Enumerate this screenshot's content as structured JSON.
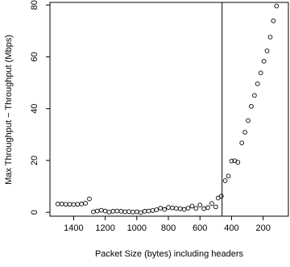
{
  "chart_data": {
    "type": "scatter",
    "title": "",
    "xlabel": "Packet Size (bytes) including headers",
    "ylabel": "Max Throughput − Throughput (Mbps)",
    "x_reversed": true,
    "xlim": [
      1550,
      40
    ],
    "ylim": [
      -1.5,
      81
    ],
    "xticks": [
      1400,
      1200,
      1000,
      800,
      600,
      400,
      200
    ],
    "xtick_labels": [
      "1400",
      "1200",
      "1000",
      "800",
      "600",
      "400",
      "200"
    ],
    "yticks": [
      0,
      20,
      40,
      60,
      80
    ],
    "ytick_labels": [
      "0",
      "20",
      "40",
      "60",
      "80"
    ],
    "vertical_line_x": 460,
    "marker": "open-circle",
    "grid": false,
    "series": [
      {
        "points": [
          {
            "x": 1500,
            "y": 3.2
          },
          {
            "x": 1475,
            "y": 3.2
          },
          {
            "x": 1450,
            "y": 3.1
          },
          {
            "x": 1425,
            "y": 3.1
          },
          {
            "x": 1400,
            "y": 3.0
          },
          {
            "x": 1375,
            "y": 3.1
          },
          {
            "x": 1350,
            "y": 3.2
          },
          {
            "x": 1325,
            "y": 3.5
          },
          {
            "x": 1300,
            "y": 5.2
          },
          {
            "x": 1275,
            "y": 0.2
          },
          {
            "x": 1250,
            "y": 0.5
          },
          {
            "x": 1225,
            "y": 0.8
          },
          {
            "x": 1200,
            "y": 0.5
          },
          {
            "x": 1175,
            "y": 0.1
          },
          {
            "x": 1150,
            "y": 0.4
          },
          {
            "x": 1125,
            "y": 0.5
          },
          {
            "x": 1100,
            "y": 0.4
          },
          {
            "x": 1075,
            "y": 0.2
          },
          {
            "x": 1050,
            "y": 0.3
          },
          {
            "x": 1025,
            "y": 0.1
          },
          {
            "x": 1000,
            "y": 0.2
          },
          {
            "x": 975,
            "y": -0.1
          },
          {
            "x": 950,
            "y": 0.4
          },
          {
            "x": 925,
            "y": 0.5
          },
          {
            "x": 900,
            "y": 0.7
          },
          {
            "x": 875,
            "y": 1.0
          },
          {
            "x": 850,
            "y": 1.6
          },
          {
            "x": 825,
            "y": 1.1
          },
          {
            "x": 800,
            "y": 1.9
          },
          {
            "x": 775,
            "y": 1.7
          },
          {
            "x": 750,
            "y": 1.5
          },
          {
            "x": 725,
            "y": 1.4
          },
          {
            "x": 700,
            "y": 1.1
          },
          {
            "x": 675,
            "y": 1.6
          },
          {
            "x": 650,
            "y": 2.4
          },
          {
            "x": 625,
            "y": 1.5
          },
          {
            "x": 600,
            "y": 2.8
          },
          {
            "x": 575,
            "y": 1.4
          },
          {
            "x": 550,
            "y": 1.8
          },
          {
            "x": 525,
            "y": 3.4
          },
          {
            "x": 500,
            "y": 2.1
          },
          {
            "x": 485,
            "y": 5.5
          },
          {
            "x": 465,
            "y": 6.2
          },
          {
            "x": 440,
            "y": 12.2
          },
          {
            "x": 420,
            "y": 14.0
          },
          {
            "x": 400,
            "y": 19.8
          },
          {
            "x": 380,
            "y": 19.9
          },
          {
            "x": 360,
            "y": 19.3
          },
          {
            "x": 335,
            "y": 26.8
          },
          {
            "x": 315,
            "y": 30.9
          },
          {
            "x": 295,
            "y": 35.4
          },
          {
            "x": 275,
            "y": 40.9
          },
          {
            "x": 255,
            "y": 45.1
          },
          {
            "x": 235,
            "y": 49.6
          },
          {
            "x": 215,
            "y": 53.8
          },
          {
            "x": 195,
            "y": 58.3
          },
          {
            "x": 175,
            "y": 62.3
          },
          {
            "x": 155,
            "y": 67.6
          },
          {
            "x": 135,
            "y": 73.9
          },
          {
            "x": 115,
            "y": 79.6
          }
        ]
      }
    ]
  }
}
